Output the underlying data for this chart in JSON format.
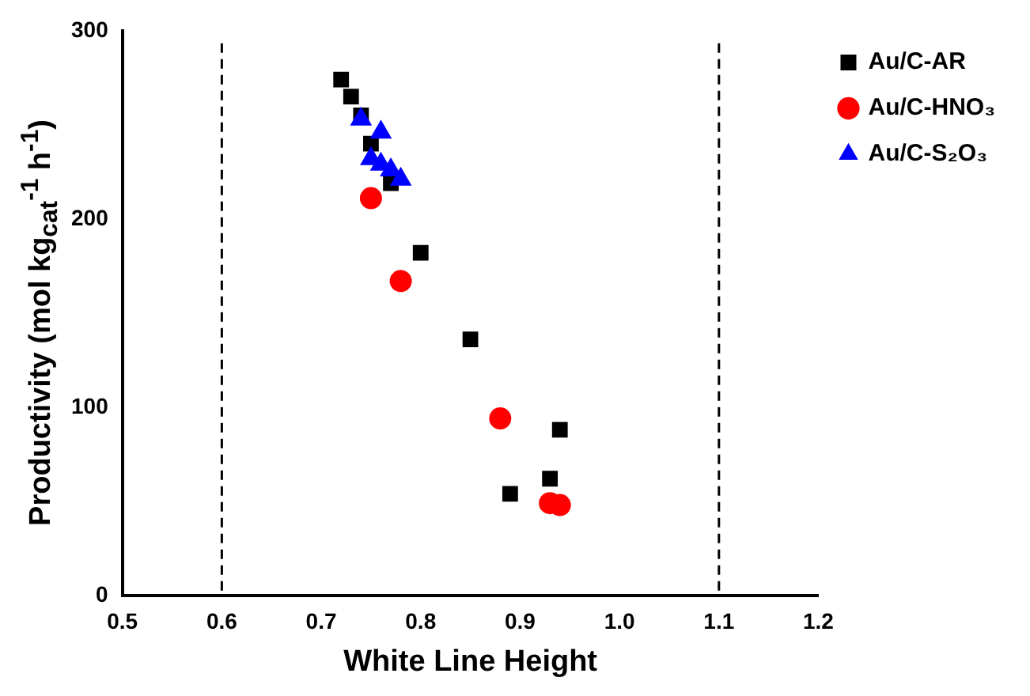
{
  "chart_data": {
    "type": "scatter",
    "xlabel": "White Line Height",
    "ylabel": "Productivity (mol kg$_{cat}$$^{-1}$ h$^{-1}$)",
    "xlim": [
      0.5,
      1.2
    ],
    "xticks": [
      {
        "value": 0.5,
        "label": "0.5"
      },
      {
        "value": 0.6,
        "label": "0.6"
      },
      {
        "value": 0.7,
        "label": "0.7"
      },
      {
        "value": 0.8,
        "label": "0.8"
      },
      {
        "value": 0.9,
        "label": "0.9"
      },
      {
        "value": 1.0,
        "label": "1.0"
      },
      {
        "value": 1.1,
        "label": "1.1"
      },
      {
        "value": 1.2,
        "label": "1.2"
      }
    ],
    "ylim": [
      0,
      300
    ],
    "yticks": [
      0,
      100,
      200,
      300
    ],
    "grid": false,
    "legend": "top right",
    "ref_lines": [
      {
        "axis": "x",
        "value": 0.6,
        "color": "#000000",
        "line_style": "dashed"
      },
      {
        "axis": "x",
        "value": 1.1,
        "color": "#000000",
        "line_style": "dashed"
      }
    ],
    "series": [
      {
        "name": "Au/C-AR",
        "color": "#000000",
        "marker": "square",
        "x": [
          0.72,
          0.73,
          0.74,
          0.75,
          0.77,
          0.8,
          0.85,
          0.89,
          0.93,
          0.94
        ],
        "values": [
          274,
          265,
          255,
          240,
          219,
          182,
          136,
          54,
          62,
          88
        ]
      },
      {
        "name": "Au/C-HNO₃",
        "color": "#ff0000",
        "marker": "circle",
        "x": [
          0.75,
          0.78,
          0.88,
          0.93,
          0.94
        ],
        "values": [
          211,
          167,
          94,
          49,
          48
        ]
      },
      {
        "name": "Au/C-S₂O₃",
        "color": "#0000ff",
        "marker": "triangle",
        "x": [
          0.74,
          0.76,
          0.75,
          0.76,
          0.77,
          0.78
        ],
        "values": [
          253,
          246,
          232,
          229,
          226,
          221
        ]
      }
    ]
  }
}
